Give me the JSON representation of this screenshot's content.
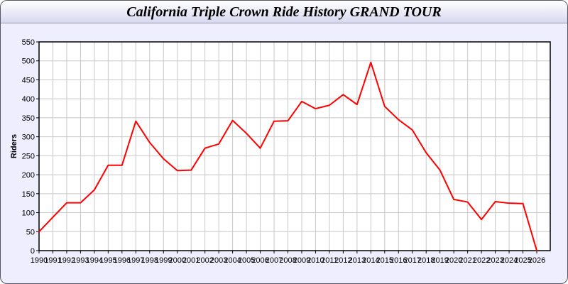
{
  "chart_data": {
    "type": "line",
    "title": "California Triple Crown Ride History GRAND TOUR",
    "xlabel": "",
    "ylabel": "Riders",
    "x": [
      1990,
      1991,
      1992,
      1993,
      1994,
      1995,
      1996,
      1997,
      1998,
      1999,
      2000,
      2001,
      2002,
      2003,
      2004,
      2005,
      2006,
      2007,
      2008,
      2009,
      2010,
      2011,
      2012,
      2013,
      2014,
      2015,
      2016,
      2017,
      2018,
      2019,
      2020,
      2021,
      2022,
      2023,
      2024,
      2025,
      2026
    ],
    "series": [
      {
        "values": [
          50,
          88,
          126,
          126,
          160,
          225,
          225,
          341,
          285,
          242,
          211,
          212,
          270,
          281,
          343,
          309,
          270,
          341,
          342,
          393,
          374,
          383,
          411,
          385,
          496,
          380,
          345,
          318,
          258,
          212,
          135,
          128,
          82,
          129,
          125,
          124,
          0
        ],
        "color": "#ff0000"
      }
    ],
    "ylim": [
      0,
      550
    ],
    "yticks": [
      0,
      50,
      100,
      150,
      200,
      250,
      300,
      350,
      400,
      450,
      500,
      550
    ],
    "grid": true,
    "legend": "none"
  }
}
